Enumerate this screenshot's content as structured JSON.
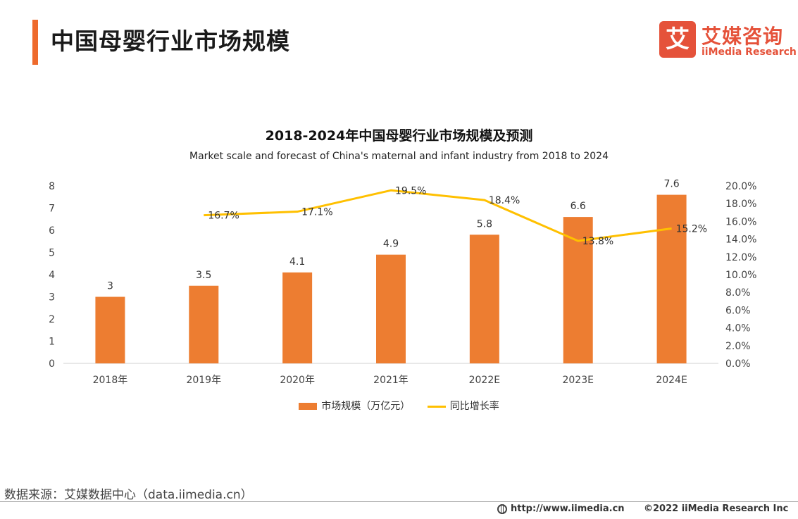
{
  "header": {
    "title": "中国母婴行业市场规模",
    "logo_mark": "艾",
    "logo_cn": "艾媒咨询",
    "logo_en": "iiMedia Research"
  },
  "chart_data": {
    "type": "bar",
    "title": "2018-2024年中国母婴行业市场规模及预测",
    "subtitle": "Market scale and forecast of China's maternal and infant industry from 2018 to 2024",
    "categories": [
      "2018年",
      "2019年",
      "2020年",
      "2021年",
      "2022E",
      "2023E",
      "2024E"
    ],
    "series": [
      {
        "name": "市场规模（万亿元）",
        "type": "bar",
        "axis": "left",
        "color": "#ed7d31",
        "values": [
          3,
          3.5,
          4.1,
          4.9,
          5.8,
          6.6,
          7.6
        ],
        "labels": [
          "3",
          "3.5",
          "4.1",
          "4.9",
          "5.8",
          "6.6",
          "7.6"
        ]
      },
      {
        "name": "同比增长率",
        "type": "line",
        "axis": "right",
        "color": "#ffc000",
        "values": [
          null,
          16.7,
          17.1,
          19.5,
          18.4,
          13.8,
          15.2
        ],
        "labels": [
          null,
          "16.7%",
          "17.1%",
          "19.5%",
          "18.4%",
          "13.8%",
          "15.2%"
        ]
      }
    ],
    "ylim": [
      0,
      8
    ],
    "y_ticks": [
      "0",
      "1",
      "2",
      "3",
      "4",
      "5",
      "6",
      "7",
      "8"
    ],
    "y2lim": [
      0,
      20
    ],
    "y2_ticks": [
      "0.0%",
      "2.0%",
      "4.0%",
      "6.0%",
      "8.0%",
      "10.0%",
      "12.0%",
      "14.0%",
      "16.0%",
      "18.0%",
      "20.0%"
    ],
    "grid": false,
    "legend": "bottom"
  },
  "footer": {
    "source": "数据来源：艾媒数据中心（data.iimedia.cn）",
    "url": "http://www.iimedia.cn",
    "copyright": "©2022  iiMedia Research  Inc"
  }
}
